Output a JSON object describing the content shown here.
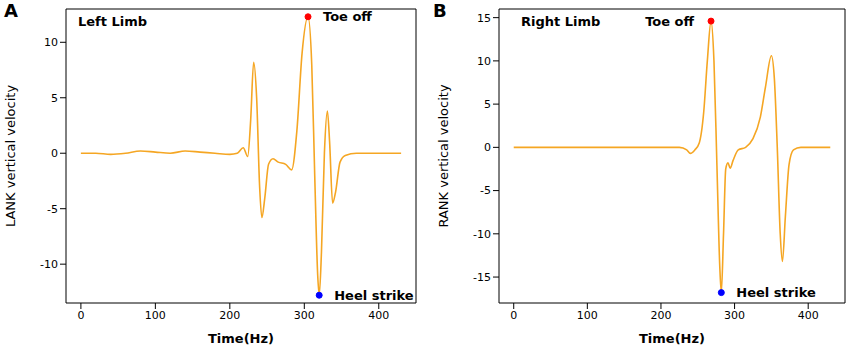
{
  "chart_data": [
    {
      "type": "line",
      "panel": "A",
      "title": "Left Limb",
      "x_label": "Time(Hz)",
      "y_label": "LANK vertical velocity",
      "xlim": [
        -20,
        450
      ],
      "xticks": [
        0,
        100,
        200,
        300,
        400
      ],
      "ylim": [
        -13.5,
        13
      ],
      "yticks": [
        -10,
        -5,
        0,
        5,
        10
      ],
      "series": [
        {
          "name": "LANK",
          "color": "#f5a623",
          "x": [
            0,
            20,
            40,
            60,
            80,
            100,
            120,
            140,
            160,
            180,
            200,
            210,
            218,
            224,
            228,
            232,
            236,
            240,
            243,
            247,
            252,
            258,
            265,
            275,
            283,
            290,
            297,
            305,
            310,
            314,
            318,
            320,
            323,
            327,
            331,
            334,
            338,
            342,
            348,
            355,
            370,
            400,
            430
          ],
          "values": [
            0,
            0,
            -0.1,
            0,
            0.2,
            0.1,
            0,
            0.2,
            0.1,
            0,
            -0.1,
            0,
            0.5,
            -0.3,
            3,
            8.2,
            5,
            -3,
            -5.8,
            -4,
            -1,
            -0.5,
            -0.8,
            -1,
            -1.5,
            2,
            9,
            12.3,
            8,
            -2,
            -11,
            -12.8,
            -9,
            0,
            3.8,
            1,
            -4.5,
            -3.5,
            -0.8,
            -0.2,
            0,
            0,
            0
          ]
        }
      ],
      "annotations": [
        {
          "text": "Toe off",
          "x": 305,
          "y": 12.3,
          "color": "#ff0000"
        },
        {
          "text": "Heel strike",
          "x": 320,
          "y": -12.8,
          "color": "#0000ff"
        }
      ]
    },
    {
      "type": "line",
      "panel": "B",
      "title": "Right Limb",
      "x_label": "Time(Hz)",
      "y_label": "RANK vertical velocity",
      "xlim": [
        -20,
        450
      ],
      "xticks": [
        0,
        100,
        200,
        300,
        400
      ],
      "ylim": [
        -18,
        16
      ],
      "yticks": [
        -15,
        -10,
        -5,
        0,
        5,
        10,
        15
      ],
      "series": [
        {
          "name": "RANK",
          "color": "#f5a623",
          "x": [
            0,
            50,
            100,
            150,
            200,
            225,
            235,
            240,
            246,
            252,
            258,
            263,
            268,
            272,
            276,
            280,
            282,
            285,
            288,
            291,
            294,
            298,
            305,
            315,
            325,
            335,
            342,
            350,
            354,
            358,
            362,
            365,
            369,
            374,
            380,
            390,
            410,
            430
          ],
          "values": [
            0,
            0,
            0,
            0,
            0,
            0,
            -0.3,
            -0.7,
            -0.3,
            0.5,
            4,
            10,
            14.6,
            10,
            -2,
            -14,
            -16.8,
            -10,
            -2.5,
            -1.8,
            -2.4,
            -1.5,
            -0.3,
            0,
            1,
            3.5,
            7,
            10.6,
            8,
            0,
            -10,
            -13.2,
            -8,
            -2,
            -0.3,
            0,
            0,
            0
          ]
        }
      ],
      "annotations": [
        {
          "text": "Toe off",
          "x": 268,
          "y": 14.6,
          "color": "#ff0000"
        },
        {
          "text": "Heel strike",
          "x": 282,
          "y": -16.8,
          "color": "#0000ff"
        }
      ]
    }
  ]
}
